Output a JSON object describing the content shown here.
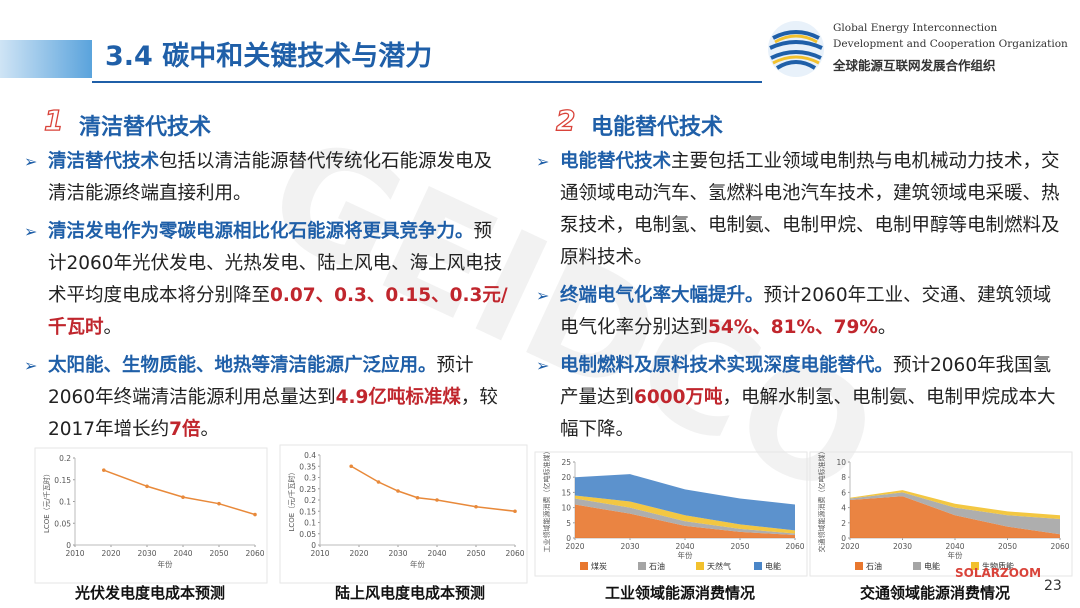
{
  "header": {
    "title": "3.4 碳中和关键技术与潜力",
    "org": [
      "Global Energy Interconnection",
      "Development and Cooperation Organization",
      "全球能源互联网发展合作组织"
    ]
  },
  "watermark": "GEIDCO",
  "sections": [
    {
      "number": "1",
      "heading": "清洁替代技术",
      "bullets": [
        [
          {
            "text": "清洁替代技术",
            "style": "blue"
          },
          {
            "text": "包括以清洁能源替代传统化石能源发电及清洁能源终端直接利用。",
            "style": "plain"
          }
        ],
        [
          {
            "text": "清洁发电作为零碳电源相比化石能源将更具竞争力。",
            "style": "blue"
          },
          {
            "text": "预计2060年光伏发电、光热发电、陆上风电、海上风电技术平均度电成本将分别降至",
            "style": "plain"
          },
          {
            "text": "0.07、0.3、0.15、0.3元/千瓦时",
            "style": "red"
          },
          {
            "text": "。",
            "style": "plain"
          }
        ],
        [
          {
            "text": "太阳能、生物质能、地热等清洁能源广泛应用。",
            "style": "blue"
          },
          {
            "text": "预计2060年终端清洁能源利用总量达到",
            "style": "plain"
          },
          {
            "text": "4.9亿吨标准煤",
            "style": "red"
          },
          {
            "text": "，较2017年增长约",
            "style": "plain"
          },
          {
            "text": "7倍",
            "style": "red"
          },
          {
            "text": "。",
            "style": "plain"
          }
        ]
      ]
    },
    {
      "number": "2",
      "heading": "电能替代技术",
      "bullets": [
        [
          {
            "text": "电能替代技术",
            "style": "blue"
          },
          {
            "text": "主要包括工业领域电制热与电机械动力技术，交通领域电动汽车、氢燃料电池汽车技术，建筑领域电采暖、热泵技术，电制氢、电制氨、电制甲烷、电制甲醇等电制燃料及原料技术。",
            "style": "plain"
          }
        ],
        [
          {
            "text": "终端电气化率大幅提升。",
            "style": "blue"
          },
          {
            "text": "预计2060年工业、交通、建筑领域电气化率分别达到",
            "style": "plain"
          },
          {
            "text": "54%、81%、79%",
            "style": "red"
          },
          {
            "text": "。",
            "style": "plain"
          }
        ],
        [
          {
            "text": "电制燃料及原料技术实现深度电能替代。",
            "style": "blue"
          },
          {
            "text": "预计2060年我国氢产量达到",
            "style": "plain"
          },
          {
            "text": "6000万吨",
            "style": "red"
          },
          {
            "text": "，电解水制氢、电制氨、电制甲烷成本大幅下降。",
            "style": "plain"
          }
        ]
      ]
    }
  ],
  "chart_data": [
    {
      "type": "line",
      "title": "光伏发电度电成本预测",
      "x_label": "年份",
      "y_label": "LCOE（元/千瓦时）",
      "color": "#e8893a",
      "x": [
        2018,
        2030,
        2040,
        2050,
        2060
      ],
      "values": [
        0.172,
        0.135,
        0.11,
        0.095,
        0.07
      ],
      "xlim": [
        2010,
        2060
      ],
      "xticks": [
        2010,
        2020,
        2030,
        2040,
        2050,
        2060
      ],
      "ylim": [
        0,
        0.2
      ],
      "yticks": [
        0,
        0.05,
        0.1,
        0.15,
        0.2
      ]
    },
    {
      "type": "line",
      "title": "陆上风电度电成本预测",
      "x_label": "年份",
      "y_label": "LCOE（元/千瓦时）",
      "color": "#e8893a",
      "x": [
        2018,
        2025,
        2030,
        2035,
        2040,
        2050,
        2060
      ],
      "values": [
        0.35,
        0.28,
        0.24,
        0.21,
        0.2,
        0.17,
        0.15
      ],
      "xlim": [
        2010,
        2060
      ],
      "xticks": [
        2010,
        2020,
        2030,
        2040,
        2050,
        2060
      ],
      "ylim": [
        0,
        0.4
      ],
      "yticks": [
        0,
        0.05,
        0.1,
        0.15,
        0.2,
        0.25,
        0.3,
        0.35,
        0.4
      ]
    },
    {
      "type": "area",
      "title": "工业领域能源消费情况",
      "x_label": "年份",
      "y_label": "工业领域能源消费（亿吨标准煤）",
      "x": [
        2020,
        2030,
        2040,
        2050,
        2060
      ],
      "series": [
        {
          "name": "煤炭",
          "color": "#e8772e",
          "values": [
            11,
            8,
            4,
            2,
            1
          ]
        },
        {
          "name": "石油",
          "color": "#a5a5a5",
          "values": [
            2,
            2,
            1.5,
            1,
            0.5
          ]
        },
        {
          "name": "天然气",
          "color": "#f2c12e",
          "values": [
            1,
            2,
            2,
            1.5,
            1
          ]
        },
        {
          "name": "电能",
          "color": "#4a86c8",
          "values": [
            6,
            9,
            8.5,
            8.5,
            8.5
          ]
        }
      ],
      "xlim": [
        2020,
        2060
      ],
      "xticks": [
        2020,
        2030,
        2040,
        2050,
        2060
      ],
      "ylim": [
        0,
        25
      ],
      "yticks": [
        0,
        5,
        10,
        15,
        20,
        25
      ]
    },
    {
      "type": "area",
      "title": "交通领域能源消费情况",
      "x_label": "年份",
      "y_label": "交通领域能源消费（亿吨标准煤）",
      "x": [
        2020,
        2030,
        2040,
        2050,
        2060
      ],
      "series": [
        {
          "name": "石油",
          "color": "#e8772e",
          "values": [
            5,
            5.5,
            3,
            1.5,
            0.5
          ]
        },
        {
          "name": "电能",
          "color": "#a5a5a5",
          "values": [
            0.2,
            0.5,
            1,
            1.5,
            2
          ]
        },
        {
          "name": "生物质能",
          "color": "#f2c12e",
          "values": [
            0.1,
            0.3,
            0.5,
            0.5,
            0.5
          ]
        }
      ],
      "xlim": [
        2020,
        2060
      ],
      "xticks": [
        2020,
        2030,
        2040,
        2050,
        2060
      ],
      "ylim": [
        0,
        10
      ],
      "yticks": [
        0,
        2,
        4,
        6,
        8,
        10
      ]
    }
  ],
  "page_number": "23",
  "source": "SOLARZOOM"
}
